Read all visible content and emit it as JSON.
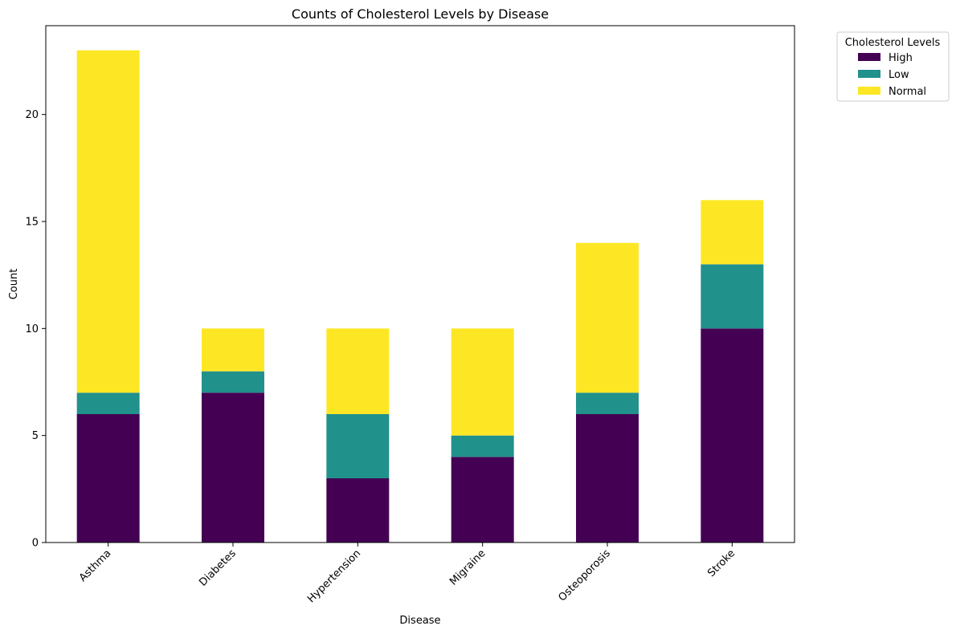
{
  "chart_data": {
    "type": "bar",
    "stacked": true,
    "title": "Counts of Cholesterol Levels by Disease",
    "xlabel": "Disease",
    "ylabel": "Count",
    "categories": [
      "Asthma",
      "Diabetes",
      "Hypertension",
      "Migraine",
      "Osteoporosis",
      "Stroke"
    ],
    "series": [
      {
        "name": "High",
        "color": "#440154",
        "values": [
          6,
          7,
          3,
          4,
          6,
          10
        ]
      },
      {
        "name": "Low",
        "color": "#21918c",
        "values": [
          1,
          1,
          3,
          1,
          1,
          3
        ]
      },
      {
        "name": "Normal",
        "color": "#fde725",
        "values": [
          16,
          2,
          4,
          5,
          7,
          3
        ]
      }
    ],
    "ylim": [
      0,
      24.15
    ],
    "yticks": [
      0,
      5,
      10,
      15,
      20
    ],
    "grid": false,
    "legend": {
      "title": "Cholesterol Levels",
      "placement": "outside-top-right"
    }
  }
}
